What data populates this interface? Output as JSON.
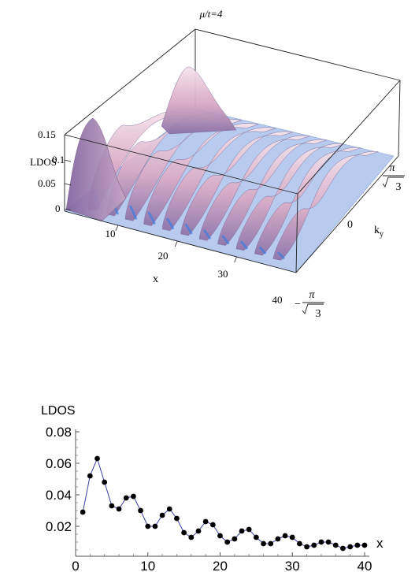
{
  "chart_data": [
    {
      "type": "surface3d",
      "title": "μ/t=4",
      "z_label": "LDOS",
      "x_label": "x",
      "y_label": "k",
      "y_label_sub": "y",
      "z_ticks": [
        "0.15",
        "0.1",
        "0.05",
        "0"
      ],
      "x_ticks": [
        "10",
        "20",
        "30",
        "40"
      ],
      "y_ticks": [
        {
          "text": "π",
          "type": "frac",
          "sign": "",
          "den": "3"
        },
        {
          "text": "0",
          "type": "plain"
        },
        {
          "text": "π",
          "type": "frac",
          "sign": "−",
          "den": "3"
        }
      ],
      "x_range": [
        1,
        40
      ],
      "z_range": [
        0,
        0.15
      ],
      "colors": {
        "surface_light": "#f3dde6",
        "surface_mid": "#d8a9c3",
        "surface_dark": "#8f73a8",
        "floor": "#b4c8ee",
        "accent": "#3f7fe0"
      }
    },
    {
      "type": "line",
      "xlabel": "x",
      "ylabel": "LDOS",
      "x_ticks": [
        "0",
        "10",
        "20",
        "30",
        "40"
      ],
      "y_ticks": [
        "0.02",
        "0.04",
        "0.06",
        "0.08"
      ],
      "xlim": [
        0,
        40
      ],
      "ylim": [
        0.001,
        0.08
      ],
      "grid": false,
      "line_color": "#3a40a8",
      "marker_color": "#000000",
      "series": [
        {
          "x": [
            1,
            2,
            3,
            4,
            5,
            6,
            7,
            8,
            9,
            10,
            11,
            12,
            13,
            14,
            15,
            16,
            17,
            18,
            19,
            20,
            21,
            22,
            23,
            24,
            25,
            26,
            27,
            28,
            29,
            30,
            31,
            32,
            33,
            34,
            35,
            36,
            37,
            38,
            39,
            40
          ],
          "values": [
            0.029,
            0.052,
            0.063,
            0.048,
            0.033,
            0.031,
            0.038,
            0.039,
            0.03,
            0.02,
            0.02,
            0.027,
            0.031,
            0.025,
            0.016,
            0.013,
            0.017,
            0.023,
            0.021,
            0.014,
            0.01,
            0.012,
            0.017,
            0.018,
            0.013,
            0.009,
            0.009,
            0.012,
            0.014,
            0.013,
            0.009,
            0.007,
            0.008,
            0.01,
            0.01,
            0.008,
            0.006,
            0.007,
            0.008,
            0.008
          ]
        }
      ]
    }
  ]
}
